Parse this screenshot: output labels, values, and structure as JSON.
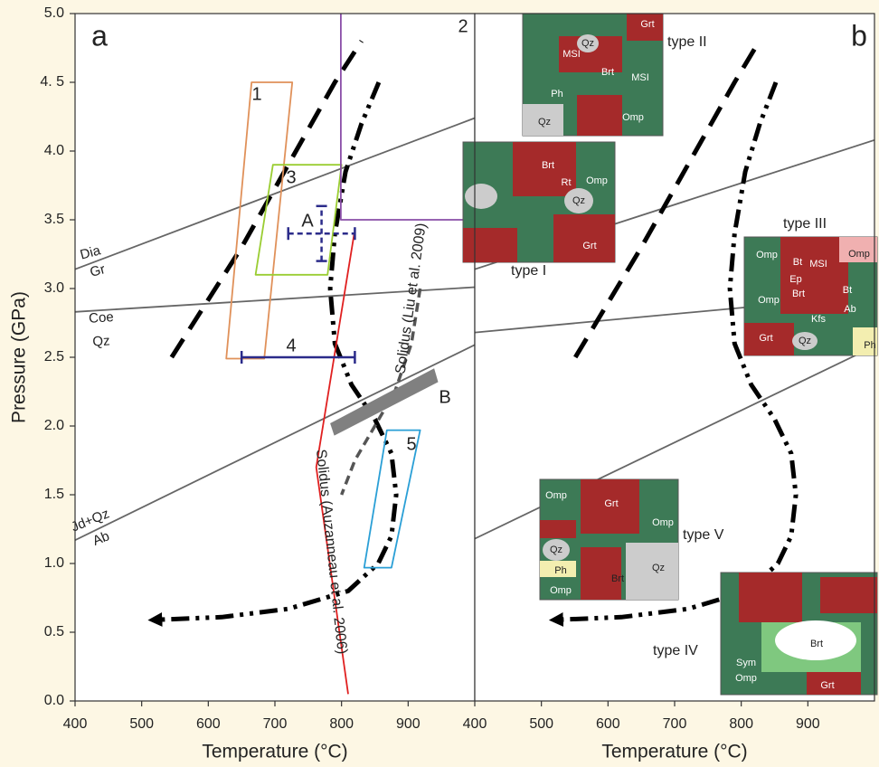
{
  "chart_data": [
    {
      "type": "line",
      "panel_label": "a",
      "xlabel": "Temperature (°C)",
      "ylabel": "Pressure (GPa)",
      "xlim": [
        400,
        1000
      ],
      "ylim": [
        0,
        5
      ],
      "xticks": [
        400,
        500,
        600,
        700,
        800,
        900
      ],
      "yticks": [
        {
          "value": 0,
          "label": "0.0"
        },
        0.5,
        {
          "value": 1,
          "label": "1.0"
        },
        1.5,
        {
          "value": 2,
          "label": "2.0"
        },
        2.5,
        {
          "value": 3,
          "label": "3.0"
        },
        3.5,
        {
          "value": 4,
          "label": "4.0"
        },
        {
          "value": 4.5,
          "label": "4. 5"
        },
        {
          "value": 5,
          "label": "5.0"
        }
      ],
      "series": [
        {
          "x": [
            400,
            1000
          ],
          "values": [
            3.14,
            4.24
          ],
          "color": "#666666",
          "dash": "solid"
        },
        {
          "x": [
            400,
            1000
          ],
          "values": [
            2.83,
            3.01
          ],
          "color": "#666666",
          "dash": "solid"
        },
        {
          "x": [
            400,
            1000
          ],
          "values": [
            1.17,
            2.59
          ],
          "color": "#666666",
          "dash": "solid"
        },
        {
          "x": [
            545,
            650,
            720,
            790,
            830
          ],
          "values": [
            2.5,
            3.3,
            3.9,
            4.5,
            4.8
          ],
          "color": "#000000",
          "dash": "dashed"
        },
        {
          "x": [
            856,
            830,
            806,
            790,
            783,
            790,
            815,
            850,
            875,
            882,
            875,
            855,
            810,
            720,
            620,
            520
          ],
          "values": [
            4.5,
            4.2,
            3.85,
            3.4,
            3.0,
            2.6,
            2.3,
            2.05,
            1.8,
            1.5,
            1.2,
            1.0,
            0.8,
            0.67,
            0.61,
            0.59
          ],
          "color": "#000000",
          "dash": "dashdot",
          "arrow": true
        },
        {
          "x": [
            819,
            762,
            810
          ],
          "values": [
            3.4,
            1.7,
            0.05
          ],
          "color": "#e02020",
          "dash": "solid"
        },
        {
          "x": [
            918,
            905,
            880,
            850,
            820,
            800
          ],
          "values": [
            3.0,
            2.6,
            2.25,
            2.0,
            1.75,
            1.5
          ],
          "color": "#555555",
          "dash": "gray-dashed"
        },
        {
          "x": [
            627,
            665,
            726,
            684
          ],
          "values": [
            2.49,
            4.5,
            4.5,
            2.49
          ],
          "color": "#e0915a",
          "dash": "solid",
          "closed": true,
          "label": "1"
        },
        {
          "x": [
            671,
            697,
            800,
            779
          ],
          "values": [
            3.1,
            3.9,
            3.9,
            3.1
          ],
          "color": "#9acd32",
          "dash": "solid",
          "closed": true,
          "label": "3"
        },
        {
          "x": [
            834,
            875,
            918,
            868
          ],
          "values": [
            0.97,
            0.97,
            1.97,
            1.97
          ],
          "color": "#2a9fd6",
          "dash": "solid",
          "closed": true,
          "label": "5"
        },
        {
          "x": [
            799,
            799,
            1000
          ],
          "values": [
            5.0,
            3.5,
            3.5
          ],
          "color": "#8a4fa8",
          "dash": "solid",
          "label": "2"
        },
        {
          "x": [
            783,
            939,
            945,
            789
          ],
          "values": [
            2.02,
            2.42,
            2.32,
            1.93
          ],
          "color": "#808080",
          "dash": "solid",
          "closed": true,
          "filled": true,
          "label": "B"
        }
      ],
      "points": [
        {
          "x": 770,
          "y": 3.4,
          "xerr": 50,
          "yerr": 0.2,
          "color": "#2b2b8a",
          "dash": "dashed",
          "label": "A"
        },
        {
          "x": 735,
          "y": 2.5,
          "xerr": 85,
          "color": "#2b2b8a",
          "dash": "solid",
          "label": "4"
        }
      ],
      "annotations": [
        "Dia",
        "Gr",
        "Coe",
        "Qz",
        "Jd+Qz",
        "Ab",
        "Solidus (Liu et al. 2009)",
        "Solidus (Auzanneau et al. 2006)"
      ]
    },
    {
      "type": "line",
      "panel_label": "b",
      "xlabel": "Temperature (°C)",
      "xlim": [
        400,
        1000
      ],
      "ylim": [
        0,
        5
      ],
      "xticks": [
        400,
        500,
        600,
        700,
        800,
        900
      ],
      "series": [
        {
          "x": [
            400,
            1000
          ],
          "values": [
            3.14,
            4.08
          ],
          "color": "#666666",
          "dash": "solid"
        },
        {
          "x": [
            400,
            1000
          ],
          "values": [
            2.68,
            2.95
          ],
          "color": "#666666",
          "dash": "solid"
        },
        {
          "x": [
            400,
            1000
          ],
          "values": [
            1.18,
            2.58
          ],
          "color": "#666666",
          "dash": "solid"
        },
        {
          "x": [
            551,
            650,
            720,
            790,
            827
          ],
          "values": [
            2.5,
            3.3,
            3.9,
            4.5,
            4.8
          ],
          "color": "#000000",
          "dash": "dashed"
        },
        {
          "x": [
            852,
            828,
            806,
            790,
            783,
            790,
            815,
            850,
            875,
            882,
            875,
            855,
            810,
            720,
            620,
            522
          ],
          "values": [
            4.5,
            4.2,
            3.85,
            3.4,
            3.0,
            2.6,
            2.3,
            2.05,
            1.8,
            1.5,
            1.2,
            1.0,
            0.8,
            0.67,
            0.61,
            0.59
          ],
          "color": "#000000",
          "dash": "dashdot",
          "arrow": true
        }
      ],
      "insets": [
        {
          "label": "type II",
          "minerals": [
            "Grt",
            "Qz",
            "MSI",
            "Brt",
            "MSI",
            "Ph",
            "Qz",
            "Omp"
          ]
        },
        {
          "label": "type I",
          "minerals": [
            "Brt",
            "Rt",
            "Omp",
            "Qz",
            "Grt"
          ]
        },
        {
          "label": "type III",
          "minerals": [
            "Omp",
            "Omp",
            "Bt",
            "MSI",
            "Ep",
            "Brt",
            "Bt",
            "Omp",
            "Kfs",
            "Ab",
            "Grt",
            "Qz",
            "Ph"
          ]
        },
        {
          "label": "type V",
          "minerals": [
            "Omp",
            "Grt",
            "Omp",
            "Qz",
            "Qz",
            "Ph",
            "Brt",
            "Omp"
          ]
        },
        {
          "label": "type IV",
          "minerals": [
            "Brt",
            "Sym",
            "Omp",
            "Grt"
          ]
        }
      ]
    }
  ]
}
